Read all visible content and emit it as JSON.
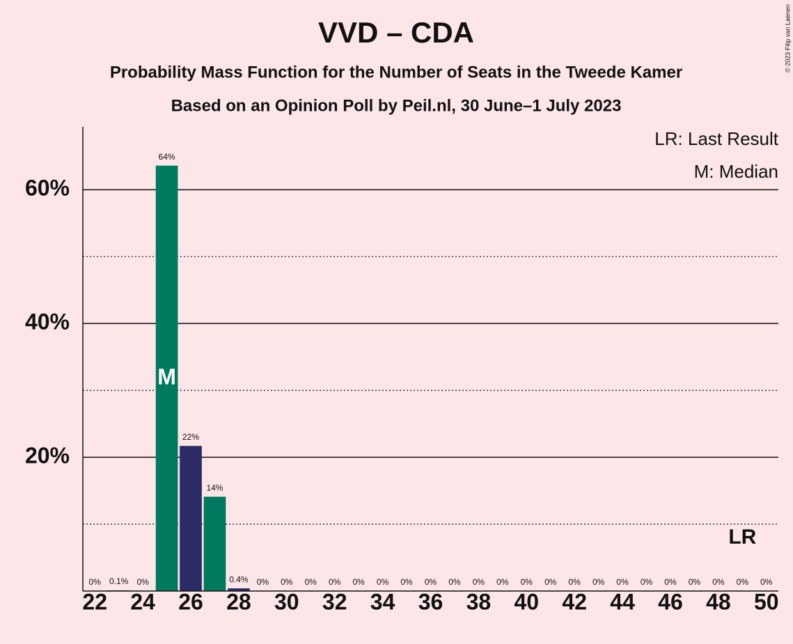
{
  "chart_data": {
    "type": "bar",
    "title": "VVD – CDA",
    "subtitle": "Probability Mass Function for the Number of Seats in the Tweede Kamer",
    "subtitle2": "Based on an Opinion Poll by Peil.nl, 30 June–1 July 2023",
    "copyright": "© 2023 Filip van Laenen",
    "x": [
      22,
      23,
      24,
      25,
      26,
      27,
      28,
      29,
      30,
      31,
      32,
      33,
      34,
      35,
      36,
      37,
      38,
      39,
      40,
      41,
      42,
      43,
      44,
      45,
      46,
      47,
      48,
      49,
      50
    ],
    "values": [
      0,
      0.1,
      0,
      63.6,
      21.7,
      14.1,
      0.4,
      0,
      0,
      0,
      0,
      0,
      0,
      0,
      0,
      0,
      0,
      0,
      0,
      0,
      0,
      0,
      0,
      0,
      0,
      0,
      0,
      0,
      0
    ],
    "value_labels": [
      "0%",
      "0.1%",
      "0%",
      "64%",
      "22%",
      "14%",
      "0.4%",
      "0%",
      "0%",
      "0%",
      "0%",
      "0%",
      "0%",
      "0%",
      "0%",
      "0%",
      "0%",
      "0%",
      "0%",
      "0%",
      "0%",
      "0%",
      "0%",
      "0%",
      "0%",
      "0%",
      "0%",
      "0%",
      "0%"
    ],
    "colors": [
      "#2b2b66",
      "#007a5e",
      "#2b2b66",
      "#007a5e",
      "#2b2b66",
      "#007a5e",
      "#2b2b66",
      "#007a5e",
      "#2b2b66",
      "#007a5e",
      "#2b2b66",
      "#007a5e",
      "#2b2b66",
      "#007a5e",
      "#2b2b66",
      "#007a5e",
      "#2b2b66",
      "#007a5e",
      "#2b2b66",
      "#007a5e",
      "#2b2b66",
      "#007a5e",
      "#2b2b66",
      "#007a5e",
      "#2b2b66",
      "#007a5e",
      "#2b2b66",
      "#007a5e",
      "#2b2b66"
    ],
    "xlim": [
      21.5,
      50.5
    ],
    "xticks": [
      22,
      24,
      26,
      28,
      30,
      32,
      34,
      36,
      38,
      40,
      42,
      44,
      46,
      48,
      50
    ],
    "ylim": [
      0,
      69.4
    ],
    "yticks": [
      {
        "value": 20,
        "label": "20%"
      },
      {
        "value": 40,
        "label": "40%"
      },
      {
        "value": 60,
        "label": "60%"
      }
    ],
    "minor_grid": [
      10,
      30,
      50
    ],
    "grid": true,
    "median": 25,
    "median_label": "M",
    "last_result": 49,
    "last_result_label": "LR",
    "legend": [
      "LR: Last Result",
      "M: Median"
    ]
  }
}
